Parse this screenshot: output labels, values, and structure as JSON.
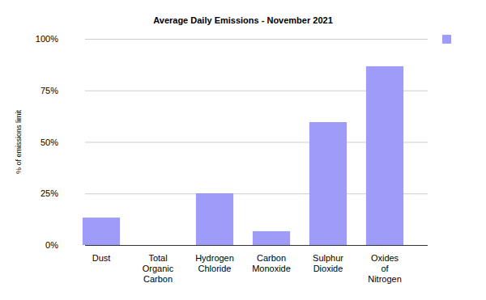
{
  "chart_data": {
    "type": "bar",
    "title": "Average Daily Emissions - November 2021",
    "y_label": "% of emissions limit",
    "categories": [
      "Dust",
      "Total Organic Carbon",
      "Hydrogen Chloride",
      "Carbon Monoxide",
      "Sulphur Dioxide",
      "Oxides of Nitrogen"
    ],
    "values": [
      13.3,
      0,
      25.1,
      6.7,
      59.6,
      86.7
    ],
    "color": "#9e9cf8",
    "ylim": [
      0,
      100
    ],
    "yticks": [
      {
        "value": 0,
        "label": "0%"
      },
      {
        "value": 25,
        "label": "25%"
      },
      {
        "value": 50,
        "label": "50%"
      },
      {
        "value": 75,
        "label": "75%"
      },
      {
        "value": 100,
        "label": "100%"
      }
    ],
    "grid": true,
    "legend": "top-right"
  }
}
